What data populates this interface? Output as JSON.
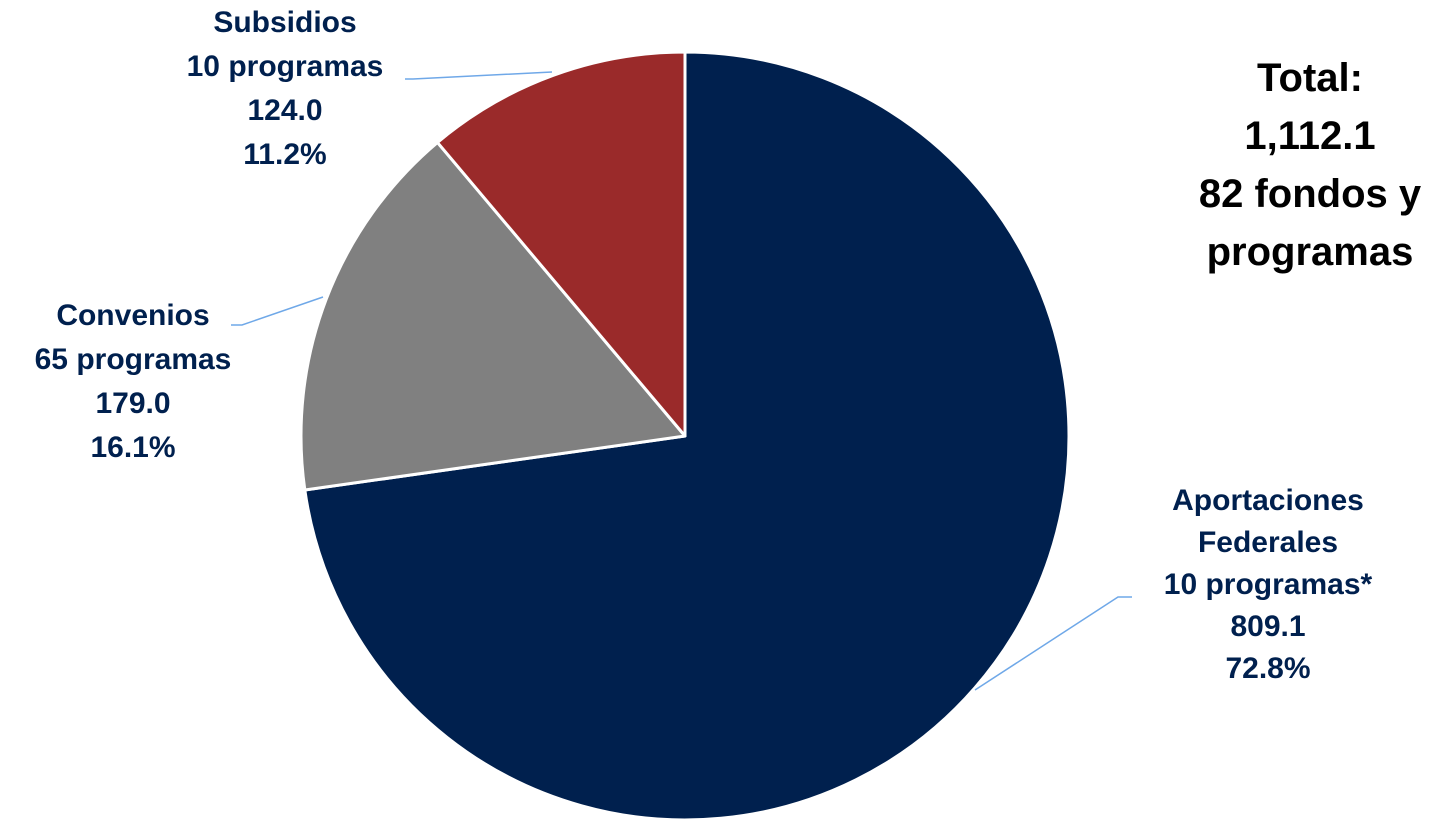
{
  "chart_data": {
    "type": "pie",
    "start_angle": "12 o'clock, clockwise",
    "slices": [
      {
        "category": "Aportaciones Federales",
        "value": 809.1,
        "percent": 72.8,
        "label_lines": [
          "Aportaciones",
          "Federales",
          "10 programas*",
          "809.1",
          "72.8%"
        ],
        "color": "#00204e"
      },
      {
        "category": "Convenios",
        "value": 179.0,
        "percent": 16.1,
        "label_lines": [
          "Convenios",
          "65 programas",
          "179.0",
          "16.1%"
        ],
        "color": "#808080"
      },
      {
        "category": "Subsidios",
        "value": 124.0,
        "percent": 11.2,
        "label_lines": [
          "Subsidios",
          "10 programas",
          "124.0",
          "11.2%"
        ],
        "color": "#9a2a2a"
      }
    ],
    "total_lines": [
      "Total:",
      "1,112.1",
      "82 fondos y",
      "programas"
    ],
    "colors": {
      "label_text": "#00204e",
      "total_text": "#000000",
      "leader_line": "#6fa8e8",
      "slice_border": "#ffffff"
    }
  }
}
